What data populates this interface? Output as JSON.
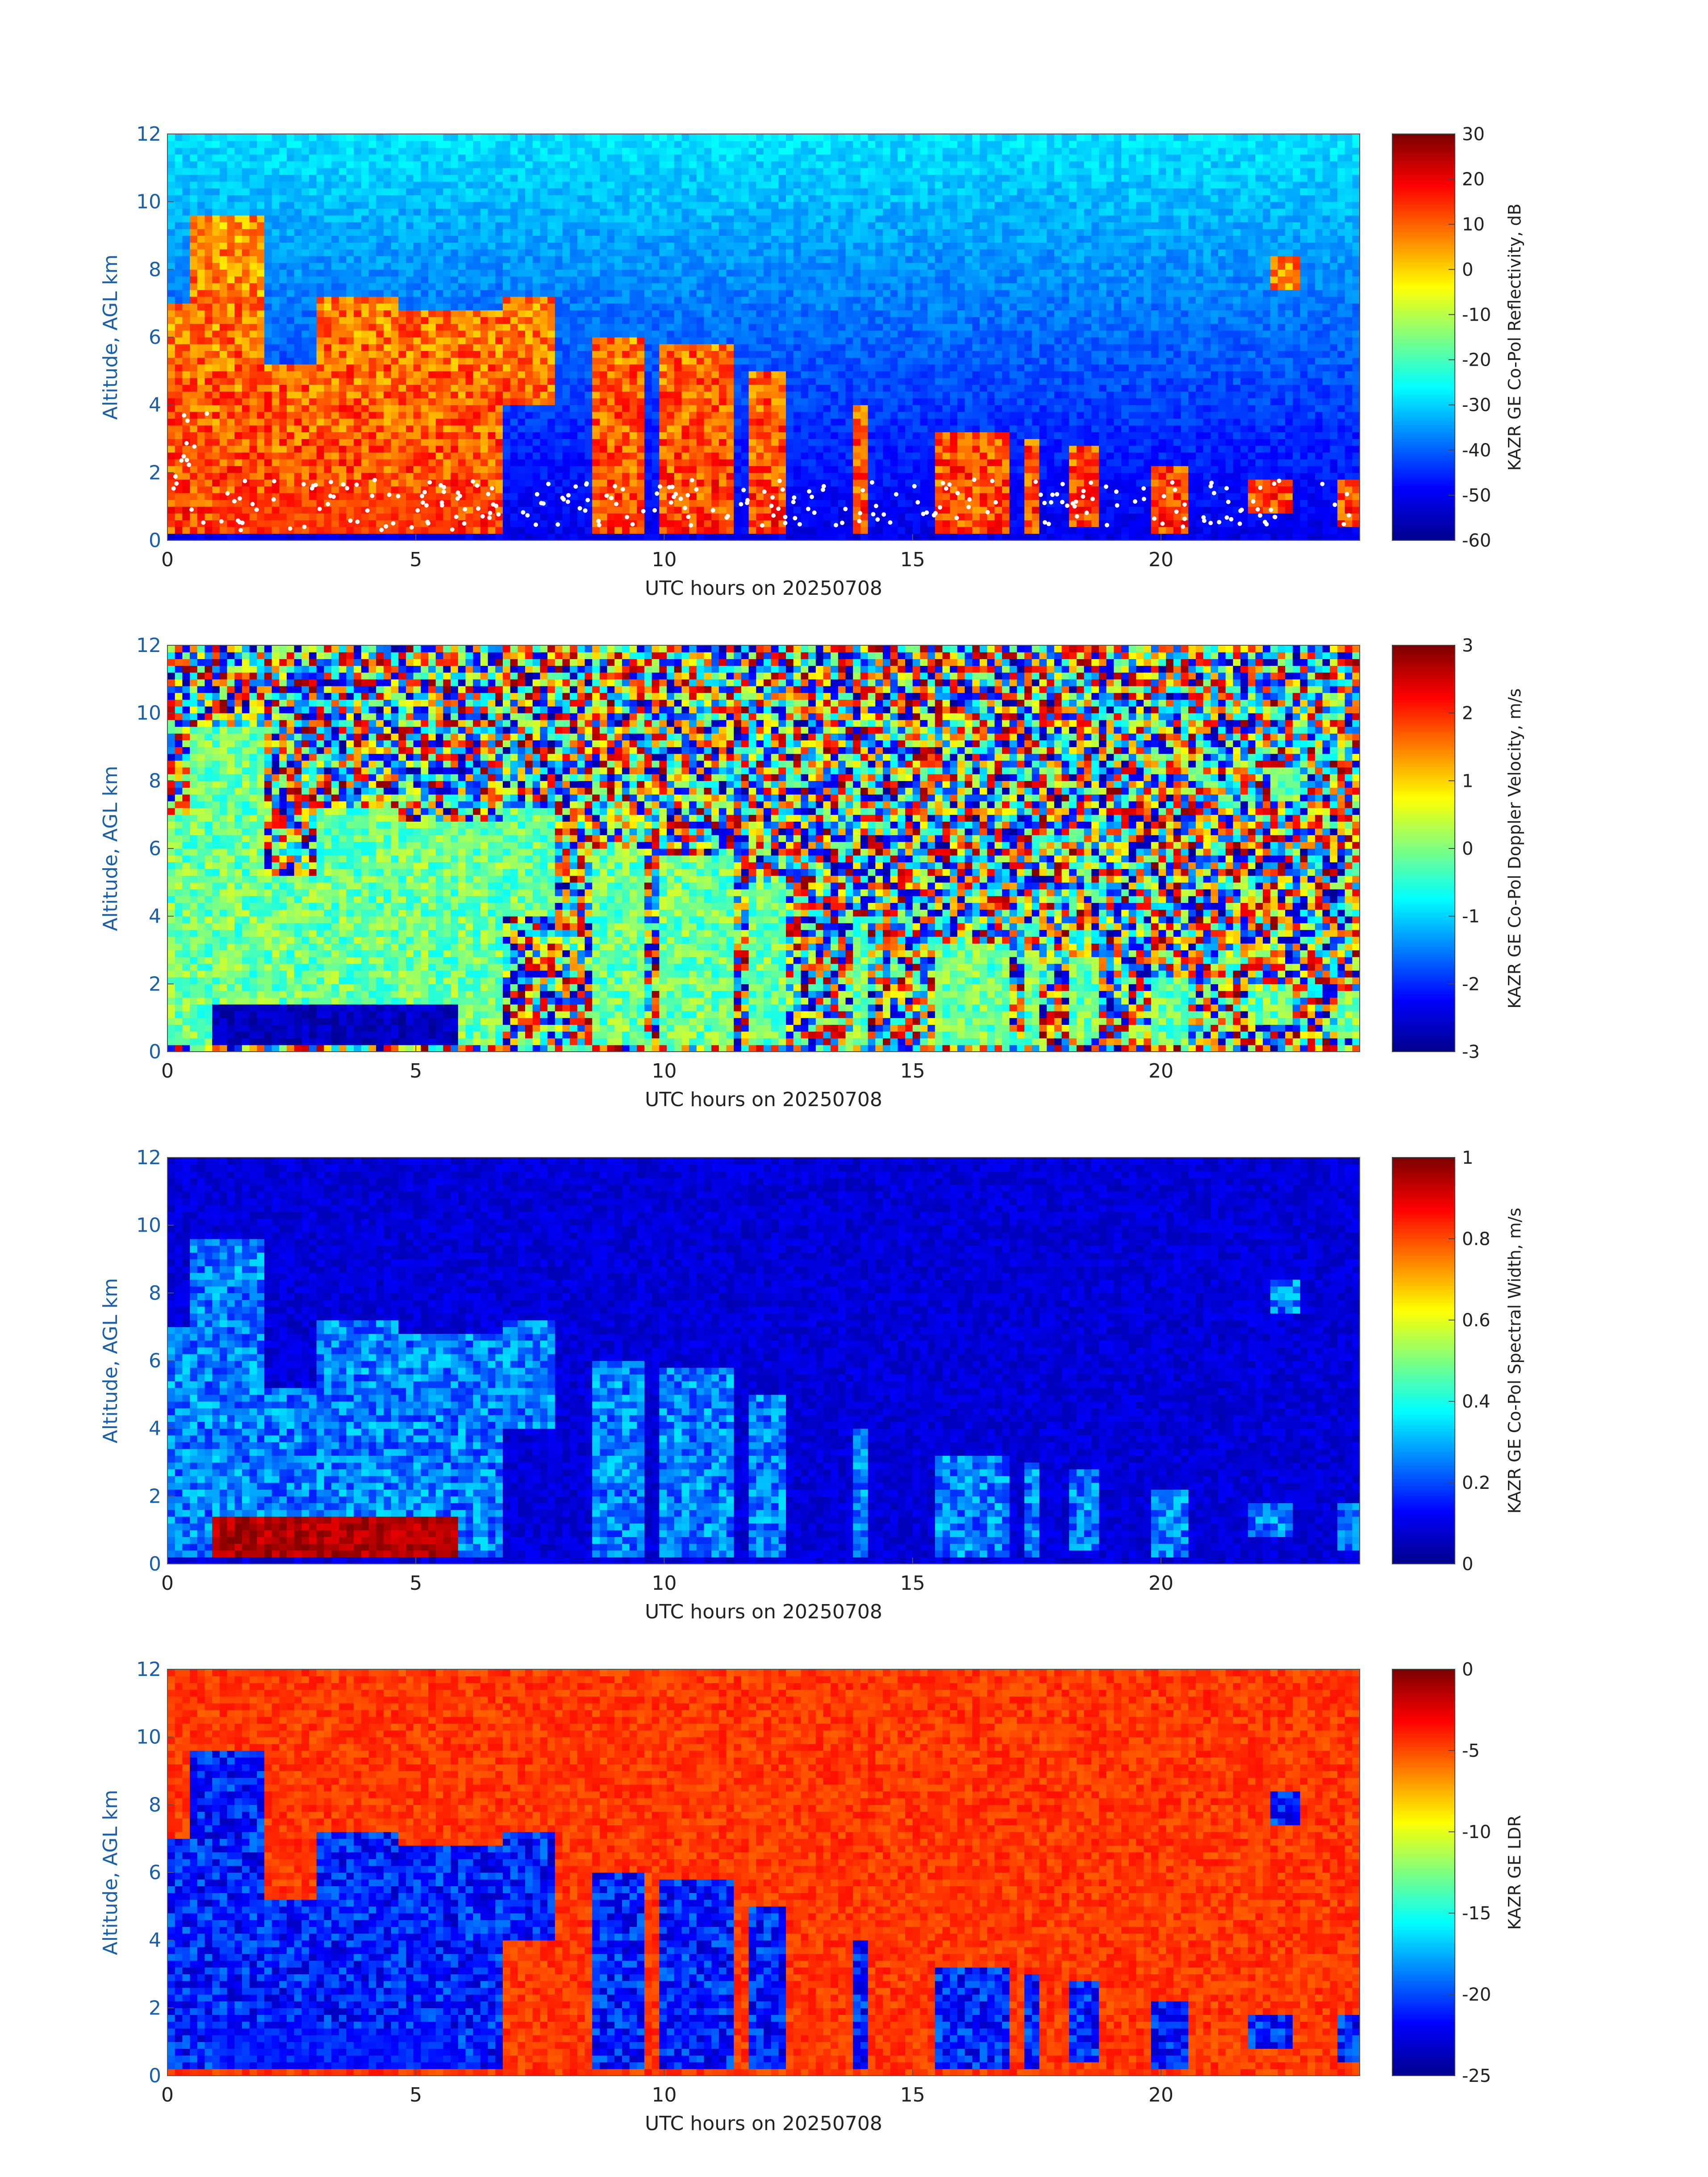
{
  "colors": {
    "jet": [
      "#00008f",
      "#0000ff",
      "#007fff",
      "#00ffff",
      "#7fff7f",
      "#ffff00",
      "#ff7f00",
      "#ff0000",
      "#7f0000"
    ],
    "axis_y_text": "#1a5fa8",
    "axis_x_text": "#222222"
  },
  "chart_data": [
    {
      "type": "heatmap",
      "name": "reflectivity",
      "xlabel": "UTC hours on 20250708",
      "ylabel": "Altitude, AGL km",
      "xlim": [
        0,
        24
      ],
      "ylim": [
        0,
        12
      ],
      "x_ticks": [
        "0",
        "5",
        "10",
        "15",
        "20"
      ],
      "y_ticks": [
        "0",
        "2",
        "4",
        "6",
        "8",
        "10",
        "12"
      ],
      "colorbar": {
        "label": "KAZR GE Co-Pol Reflectivity, dB",
        "range": [
          -60,
          30
        ],
        "ticks": [
          "30",
          "20",
          "10",
          "0",
          "-10",
          "-20",
          "-30",
          "-40",
          "-50",
          "-60"
        ]
      },
      "background_level": 0.35,
      "cloud_level": 0.72,
      "cloud_level_low": 0.82,
      "overlay_points": "white"
    },
    {
      "type": "heatmap",
      "name": "doppler",
      "xlabel": "UTC hours on 20250708",
      "ylabel": "Altitude, AGL km",
      "xlim": [
        0,
        24
      ],
      "ylim": [
        0,
        12
      ],
      "x_ticks": [
        "0",
        "5",
        "10",
        "15",
        "20"
      ],
      "y_ticks": [
        "0",
        "2",
        "4",
        "6",
        "8",
        "10",
        "12"
      ],
      "colorbar": {
        "label": "KAZR GE Co-Pol Doppler Velocity, m/s",
        "range": [
          -3,
          3
        ],
        "ticks": [
          "3",
          "2",
          "1",
          "0",
          "-1",
          "-2",
          "-3"
        ]
      },
      "background_level": "noise",
      "cloud_level": 0.48,
      "cloud_level_low": 0.05
    },
    {
      "type": "heatmap",
      "name": "width",
      "xlabel": "UTC hours on 20250708",
      "ylabel": "Altitude, AGL km",
      "xlim": [
        0,
        24
      ],
      "ylim": [
        0,
        12
      ],
      "x_ticks": [
        "0",
        "5",
        "10",
        "15",
        "20"
      ],
      "y_ticks": [
        "0",
        "2",
        "4",
        "6",
        "8",
        "10",
        "12"
      ],
      "colorbar": {
        "label": "KAZR GE Co-Pol Spectral Width, m/s",
        "range": [
          0,
          1
        ],
        "ticks": [
          "1",
          "0.8",
          "0.6",
          "0.4",
          "0.2",
          "0"
        ]
      },
      "background_level": 0.08,
      "cloud_level": 0.25,
      "cloud_level_low": 0.95
    },
    {
      "type": "heatmap",
      "name": "ldr",
      "xlabel": "UTC hours on 20250708",
      "ylabel": "Altitude, AGL km",
      "xlim": [
        0,
        24
      ],
      "ylim": [
        0,
        12
      ],
      "x_ticks": [
        "0",
        "5",
        "10",
        "15",
        "20"
      ],
      "y_ticks": [
        "0",
        "2",
        "4",
        "6",
        "8",
        "10",
        "12"
      ],
      "colorbar": {
        "label": "KAZR GE LDR",
        "range": [
          -25,
          0
        ],
        "ticks": [
          "0",
          "-5",
          "-10",
          "-15",
          "-20",
          "-25"
        ]
      },
      "background_level": 0.82,
      "cloud_level": 0.15,
      "cloud_level_low": 0.15
    }
  ],
  "cloud_features": [
    {
      "x0": 0.0,
      "x1": 0.4,
      "top": 7.0,
      "base": 0.2
    },
    {
      "x0": 0.4,
      "x1": 2.0,
      "top": 9.5,
      "base": 0.2
    },
    {
      "x0": 2.0,
      "x1": 3.0,
      "top": 5.2,
      "base": 0.2
    },
    {
      "x0": 3.0,
      "x1": 4.6,
      "top": 7.2,
      "base": 0.2
    },
    {
      "x0": 4.6,
      "x1": 6.8,
      "top": 6.8,
      "base": 0.2
    },
    {
      "x0": 6.8,
      "x1": 7.8,
      "top": 7.2,
      "base": 4.0
    },
    {
      "x0": 8.6,
      "x1": 9.6,
      "top": 6.0,
      "base": 0.2
    },
    {
      "x0": 9.9,
      "x1": 11.4,
      "top": 5.7,
      "base": 0.2
    },
    {
      "x0": 11.7,
      "x1": 12.5,
      "top": 5.0,
      "base": 0.2
    },
    {
      "x0": 13.8,
      "x1": 14.1,
      "top": 4.0,
      "base": 0.2
    },
    {
      "x0": 15.4,
      "x1": 17.0,
      "top": 3.3,
      "base": 0.2
    },
    {
      "x0": 17.3,
      "x1": 17.5,
      "top": 3.0,
      "base": 0.2
    },
    {
      "x0": 18.2,
      "x1": 18.8,
      "top": 2.7,
      "base": 0.4
    },
    {
      "x0": 19.8,
      "x1": 20.5,
      "top": 2.2,
      "base": 0.2
    },
    {
      "x0": 21.8,
      "x1": 22.6,
      "top": 1.8,
      "base": 0.8
    },
    {
      "x0": 22.2,
      "x1": 22.8,
      "top": 8.4,
      "base": 7.5
    },
    {
      "x0": 23.6,
      "x1": 24.0,
      "top": 1.7,
      "base": 0.5
    }
  ],
  "low_cloud_layer": {
    "x0": 0.9,
    "x1": 5.8,
    "top": 1.4,
    "base": 0.2
  }
}
